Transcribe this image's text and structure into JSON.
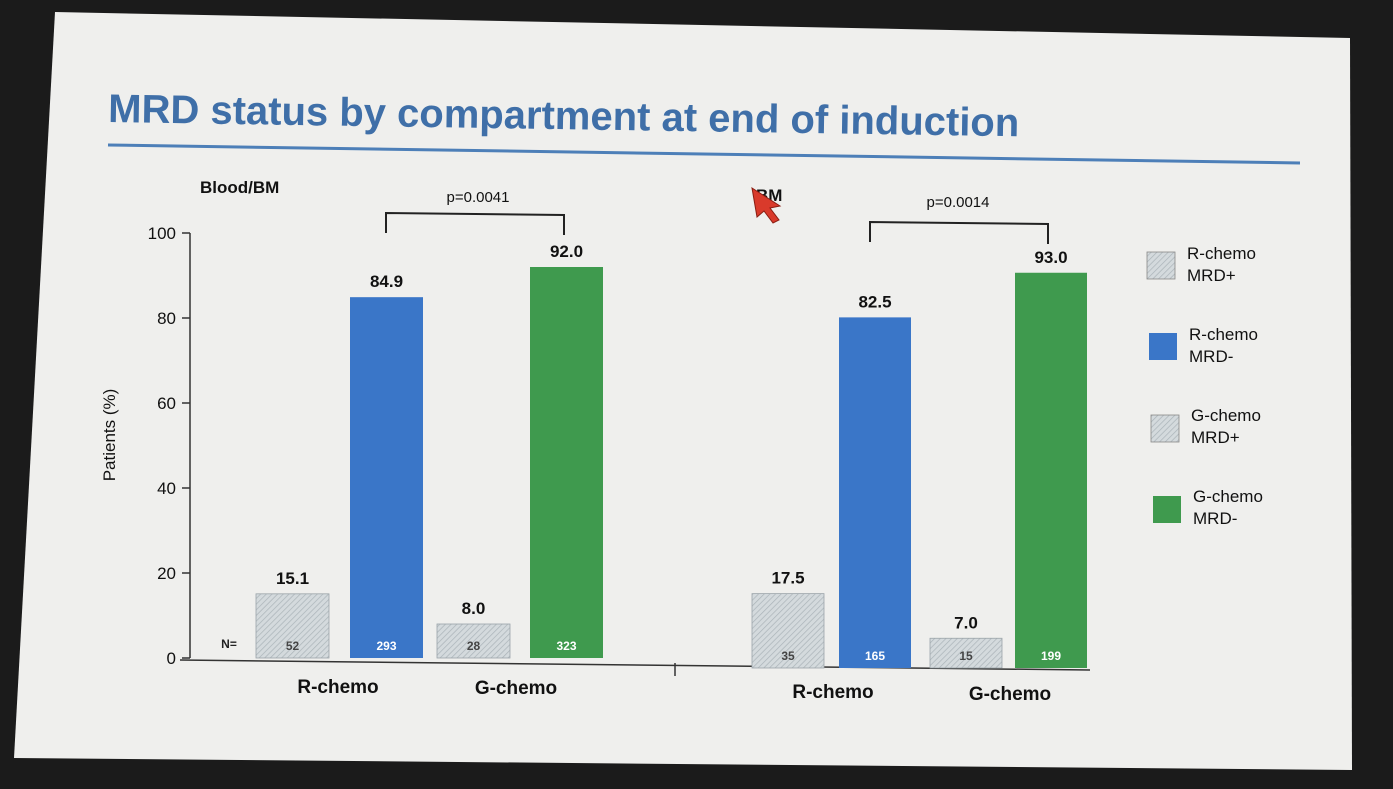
{
  "slide": {
    "title": "MRD status by compartment at end of induction"
  },
  "colors": {
    "slide_bg": "#efefed",
    "title": "#3f6fa8",
    "rule": "#4d7fb8",
    "blue": "#3a76c8",
    "green": "#3f9a4e",
    "hatch_base": "#d4dadd",
    "hatch_line": "#aab3b8",
    "text": "#111111"
  },
  "legend": {
    "items": [
      {
        "label_line1": "R-chemo",
        "label_line2": "MRD+",
        "fill": "hatch"
      },
      {
        "label_line1": "R-chemo",
        "label_line2": "MRD-",
        "fill": "blue"
      },
      {
        "label_line1": "G-chemo",
        "label_line2": "MRD+",
        "fill": "hatch"
      },
      {
        "label_line1": "G-chemo",
        "label_line2": "MRD-",
        "fill": "green"
      }
    ]
  },
  "chart_data": [
    {
      "type": "bar",
      "panel_label": "Blood/BM",
      "ylabel": "Patients (%)",
      "ylim": [
        0,
        100
      ],
      "yticks": [
        "0",
        "20",
        "40",
        "60",
        "80",
        "100"
      ],
      "n_label": "N=",
      "p_value": "p=0.0041",
      "groups": [
        {
          "category": "R-chemo",
          "bars": [
            {
              "series": "R-chemo MRD+",
              "value": 15.1,
              "label": "15.1",
              "n": "52",
              "fill": "hatch"
            },
            {
              "series": "R-chemo MRD-",
              "value": 84.9,
              "label": "84.9",
              "n": "293",
              "fill": "blue"
            }
          ]
        },
        {
          "category": "G-chemo",
          "bars": [
            {
              "series": "G-chemo MRD+",
              "value": 8.0,
              "label": "8.0",
              "n": "28",
              "fill": "hatch"
            },
            {
              "series": "G-chemo MRD-",
              "value": 92.0,
              "label": "92.0",
              "n": "323",
              "fill": "green"
            }
          ]
        }
      ]
    },
    {
      "type": "bar",
      "panel_label": "BM",
      "ylim": [
        0,
        100
      ],
      "p_value": "p=0.0014",
      "groups": [
        {
          "category": "R-chemo",
          "bars": [
            {
              "series": "R-chemo MRD+",
              "value": 17.5,
              "label": "17.5",
              "n": "35",
              "fill": "hatch"
            },
            {
              "series": "R-chemo MRD-",
              "value": 82.5,
              "label": "82.5",
              "n": "165",
              "fill": "blue"
            }
          ]
        },
        {
          "category": "G-chemo",
          "bars": [
            {
              "series": "G-chemo MRD+",
              "value": 7.0,
              "label": "7.0",
              "n": "15",
              "fill": "hatch"
            },
            {
              "series": "G-chemo MRD-",
              "value": 93.0,
              "label": "93.0",
              "n": "199",
              "fill": "green"
            }
          ]
        }
      ]
    }
  ]
}
